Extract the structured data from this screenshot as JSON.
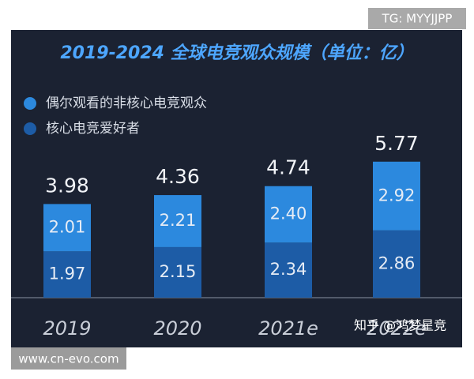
{
  "chart_data": {
    "type": "stacked-bar",
    "title": "2019-2024 全球电竞观众规模（单位：亿）",
    "categories": [
      "2019",
      "2020",
      "2021e",
      "2022e"
    ],
    "series": [
      {
        "name": "核心电竞爱好者",
        "color": "#1d5ca6",
        "values": [
          1.97,
          2.15,
          2.34,
          2.86
        ],
        "value_labels": [
          "1.97",
          "2.15",
          "2.34",
          "2.86"
        ]
      },
      {
        "name": "偶尔观看的非核心电竞观众",
        "color": "#2c89de",
        "values": [
          2.01,
          2.21,
          2.4,
          2.92
        ],
        "value_labels": [
          "2.01",
          "2.21",
          "2.40",
          "2.92"
        ]
      }
    ],
    "totals": [
      3.98,
      4.36,
      4.74,
      5.77
    ]
  },
  "watermarks": [
    "TG: MYYJJPP",
    "www.cn-evo.com",
    "知乎 @鸿梦星竞"
  ]
}
